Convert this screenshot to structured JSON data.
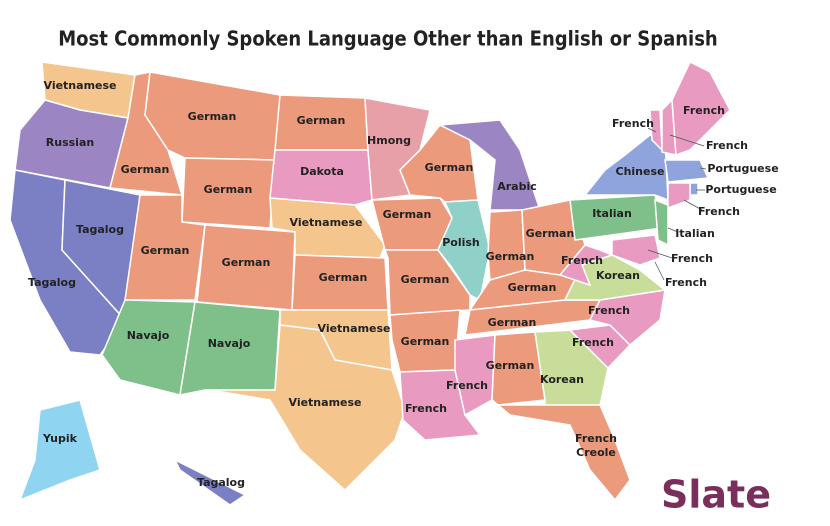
{
  "title": "Most Commonly Spoken Language Other than English or Spanish",
  "logo": "Slate",
  "regions": [
    {
      "label": "Vietnamese"
    },
    {
      "label": "Russian"
    },
    {
      "label": "German"
    },
    {
      "label": "German"
    },
    {
      "label": "German"
    },
    {
      "label": "German"
    },
    {
      "label": "Dakota"
    },
    {
      "label": "Hmong"
    },
    {
      "label": "German"
    },
    {
      "label": "Arabic"
    },
    {
      "label": "Tagalog"
    },
    {
      "label": "Tagalog"
    },
    {
      "label": "German"
    },
    {
      "label": "German"
    },
    {
      "label": "Vietnamese"
    },
    {
      "label": "German"
    },
    {
      "label": "Polish"
    },
    {
      "label": "German"
    },
    {
      "label": "German"
    },
    {
      "label": "German"
    },
    {
      "label": "German"
    },
    {
      "label": "German"
    },
    {
      "label": "Navajo"
    },
    {
      "label": "Navajo"
    },
    {
      "label": "Vietnamese"
    },
    {
      "label": "German"
    },
    {
      "label": "German"
    },
    {
      "label": "Vietnamese"
    },
    {
      "label": "French"
    },
    {
      "label": "French"
    },
    {
      "label": "German"
    },
    {
      "label": "Korean"
    },
    {
      "label": "French"
    },
    {
      "label": "French"
    },
    {
      "label": "French"
    },
    {
      "label": "Korean"
    },
    {
      "label": "Chinese"
    },
    {
      "label": "Italian"
    },
    {
      "label": "Italian"
    },
    {
      "label": "French"
    },
    {
      "label": "French"
    },
    {
      "label": "French"
    },
    {
      "label": "French"
    },
    {
      "label": "French"
    },
    {
      "label": "Portuguese"
    },
    {
      "label": "Portuguese"
    },
    {
      "label": "French"
    },
    {
      "label_lines": [
        "French",
        "Creole"
      ]
    },
    {
      "label": "Yupik"
    },
    {
      "label": "Tagalog"
    }
  ]
}
